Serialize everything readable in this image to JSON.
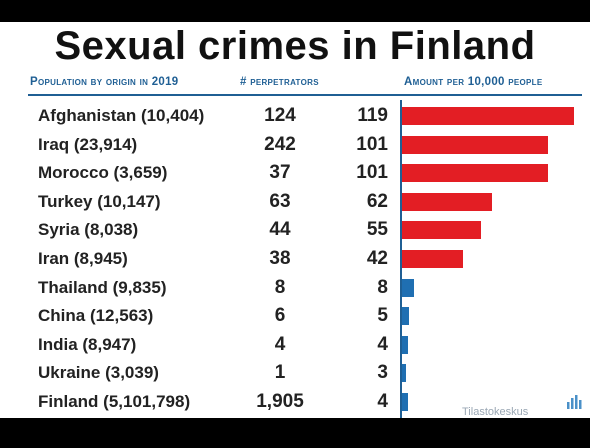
{
  "chart_data": {
    "type": "bar",
    "orientation": "horizontal",
    "title": "Sexual crimes in Finland",
    "columns": [
      "Population by origin in 2019",
      "# perpetrators",
      "Amount per 10,000 people"
    ],
    "categories": [
      "Afghanistan (10,404)",
      "Iraq (23,914)",
      "Morocco (3,659)",
      "Turkey (10,147)",
      "Syria (8,038)",
      "Iran (8,945)",
      "Thailand (9,835)",
      "China (12,563)",
      "India (8,947)",
      "Ukraine (3,039)",
      "Finland (5,101,798)"
    ],
    "perpetrators": [
      "124",
      "242",
      "37",
      "63",
      "44",
      "38",
      "8",
      "6",
      "4",
      "1",
      "1,905"
    ],
    "values": [
      119,
      101,
      101,
      62,
      55,
      42,
      8,
      5,
      4,
      3,
      4
    ],
    "bar_colors": [
      "#e31e24",
      "#e31e24",
      "#e31e24",
      "#e31e24",
      "#e31e24",
      "#e31e24",
      "#1f6fb2",
      "#1f6fb2",
      "#1f6fb2",
      "#1f6fb2",
      "#1f6fb2"
    ],
    "xlim": [
      0,
      119
    ],
    "grid": false,
    "legend": "none"
  },
  "watermark": "Tilastokeskus",
  "colors": {
    "header": "#1f5f94",
    "high": "#e31e24",
    "low": "#1f6fb2"
  }
}
